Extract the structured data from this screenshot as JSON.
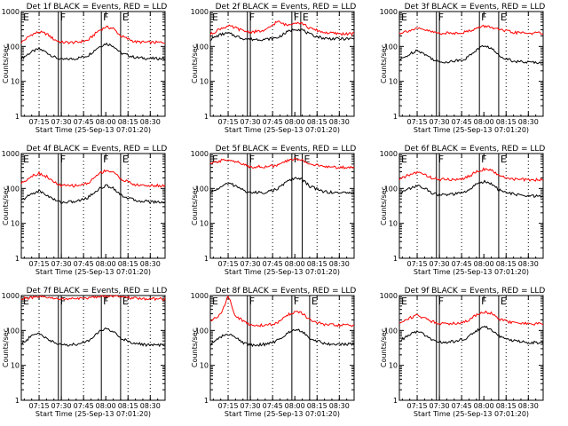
{
  "colors": {
    "events": "#000000",
    "lld": "#ff0000",
    "axis": "#000000",
    "background": "#ffffff"
  },
  "common": {
    "ylabel": "Counts/sec",
    "xlabel": "Start Time (25-Sep-13 07:01:20)",
    "xticks": [
      "07:15",
      "07:30",
      "07:45",
      "08:00",
      "08:15",
      "08:30"
    ],
    "yticks": [
      "1",
      "10",
      "100",
      "1000"
    ],
    "markers": [
      "E",
      "F",
      "F",
      "E"
    ]
  },
  "chart_data": [
    {
      "type": "line",
      "title": "Det 1f BLACK = Events, RED = LLD",
      "ylabel": "Counts/sec",
      "xlabel": "Start Time (25-Sep-13 07:01:20)",
      "yscale": "log",
      "ylim": [
        1,
        1000
      ],
      "xlim": [
        "07:03",
        "08:40"
      ],
      "vlines_dotted": [
        "07:15",
        "07:45",
        "08:15",
        "08:30"
      ],
      "vlines_solid": [
        "07:28",
        "07:30",
        "07:57",
        "08:10"
      ],
      "series": [
        {
          "name": "BLACK = Events",
          "x": [
            "07:03",
            "07:10",
            "07:15",
            "07:20",
            "07:25",
            "07:30",
            "07:40",
            "07:48",
            "07:55",
            "08:00",
            "08:05",
            "08:10",
            "08:20",
            "08:30",
            "08:40"
          ],
          "y": [
            45,
            70,
            85,
            68,
            50,
            42,
            45,
            55,
            95,
            120,
            105,
            65,
            48,
            45,
            45
          ]
        },
        {
          "name": "RED = LLD",
          "x": [
            "07:03",
            "07:10",
            "07:15",
            "07:20",
            "07:25",
            "07:30",
            "07:40",
            "07:48",
            "07:55",
            "08:00",
            "08:05",
            "08:10",
            "08:20",
            "08:30",
            "08:40"
          ],
          "y": [
            130,
            220,
            260,
            230,
            160,
            130,
            130,
            150,
            280,
            360,
            330,
            200,
            135,
            130,
            130
          ]
        }
      ]
    },
    {
      "type": "line",
      "title": "Det 2f BLACK = Events, RED = LLD",
      "ylabel": "Counts/sec",
      "xlabel": "Start Time (25-Sep-13 07:01:20)",
      "yscale": "log",
      "ylim": [
        1,
        1000
      ],
      "xlim": [
        "07:03",
        "08:40"
      ],
      "vlines_dotted": [
        "07:15",
        "07:45",
        "08:15",
        "08:30"
      ],
      "vlines_solid": [
        "07:28",
        "07:30",
        "07:58",
        "08:04"
      ],
      "series": [
        {
          "name": "BLACK = Events",
          "x": [
            "07:03",
            "07:10",
            "07:15",
            "07:20",
            "07:25",
            "07:30",
            "07:40",
            "07:48",
            "07:55",
            "08:00",
            "08:05",
            "08:10",
            "08:20",
            "08:30",
            "08:40"
          ],
          "y": [
            160,
            220,
            240,
            200,
            170,
            160,
            160,
            175,
            260,
            320,
            300,
            220,
            170,
            165,
            165
          ]
        },
        {
          "name": "RED = LLD",
          "x": [
            "07:03",
            "07:10",
            "07:15",
            "07:20",
            "07:25",
            "07:30",
            "07:40",
            "07:48",
            "07:55",
            "08:00",
            "08:05",
            "08:10",
            "08:20",
            "08:30",
            "08:40"
          ],
          "y": [
            220,
            330,
            380,
            340,
            280,
            260,
            280,
            520,
            400,
            500,
            460,
            330,
            250,
            230,
            230
          ]
        }
      ]
    },
    {
      "type": "line",
      "title": "Det 3f BLACK = Events, RED = LLD",
      "ylabel": "Counts/sec",
      "xlabel": "Start Time (25-Sep-13 07:01:20)",
      "yscale": "log",
      "ylim": [
        1,
        1000
      ],
      "xlim": [
        "07:03",
        "08:40"
      ],
      "vlines_dotted": [
        "07:15",
        "07:45",
        "08:15",
        "08:30"
      ],
      "vlines_solid": [
        "07:28",
        "07:30",
        "07:57",
        "08:10"
      ],
      "series": [
        {
          "name": "BLACK = Events",
          "x": [
            "07:03",
            "07:10",
            "07:15",
            "07:20",
            "07:25",
            "07:30",
            "07:40",
            "07:48",
            "07:55",
            "08:00",
            "08:05",
            "08:10",
            "08:20",
            "08:30",
            "08:40"
          ],
          "y": [
            40,
            60,
            80,
            60,
            45,
            35,
            38,
            45,
            80,
            105,
            90,
            55,
            38,
            35,
            35
          ]
        },
        {
          "name": "RED = LLD",
          "x": [
            "07:03",
            "07:10",
            "07:15",
            "07:20",
            "07:25",
            "07:30",
            "07:40",
            "07:48",
            "07:55",
            "08:00",
            "08:05",
            "08:10",
            "08:20",
            "08:30",
            "08:40"
          ],
          "y": [
            240,
            290,
            320,
            300,
            260,
            240,
            240,
            260,
            330,
            380,
            360,
            300,
            250,
            240,
            240
          ]
        }
      ]
    },
    {
      "type": "line",
      "title": "Det 4f BLACK = Events, RED = LLD",
      "ylabel": "Counts/sec",
      "xlabel": "Start Time (25-Sep-13 07:01:20)",
      "yscale": "log",
      "ylim": [
        1,
        1000
      ],
      "xlim": [
        "07:03",
        "08:40"
      ],
      "vlines_dotted": [
        "07:15",
        "07:45",
        "08:15",
        "08:30"
      ],
      "vlines_solid": [
        "07:28",
        "07:30",
        "07:57",
        "08:10"
      ],
      "series": [
        {
          "name": "BLACK = Events",
          "x": [
            "07:03",
            "07:10",
            "07:15",
            "07:20",
            "07:25",
            "07:30",
            "07:40",
            "07:48",
            "07:55",
            "08:00",
            "08:05",
            "08:10",
            "08:20",
            "08:30",
            "08:40"
          ],
          "y": [
            45,
            70,
            85,
            65,
            48,
            40,
            42,
            55,
            95,
            120,
            105,
            65,
            45,
            42,
            40
          ]
        },
        {
          "name": "RED = LLD",
          "x": [
            "07:03",
            "07:10",
            "07:15",
            "07:20",
            "07:25",
            "07:30",
            "07:40",
            "07:48",
            "07:55",
            "08:00",
            "08:05",
            "08:10",
            "08:20",
            "08:30",
            "08:40"
          ],
          "y": [
            140,
            230,
            270,
            220,
            150,
            120,
            120,
            140,
            260,
            330,
            300,
            190,
            125,
            120,
            120
          ]
        }
      ]
    },
    {
      "type": "line",
      "title": "Det 5f BLACK = Events, RED = LLD",
      "ylabel": "Counts/sec",
      "xlabel": "Start Time (25-Sep-13 07:01:20)",
      "yscale": "log",
      "ylim": [
        1,
        1000
      ],
      "xlim": [
        "07:03",
        "08:40"
      ],
      "vlines_dotted": [
        "07:15",
        "07:45",
        "08:15",
        "08:30"
      ],
      "vlines_solid": [
        "07:28",
        "07:30",
        "07:58",
        "08:05"
      ],
      "series": [
        {
          "name": "BLACK = Events",
          "x": [
            "07:03",
            "07:10",
            "07:15",
            "07:20",
            "07:25",
            "07:30",
            "07:40",
            "07:48",
            "07:55",
            "08:00",
            "08:05",
            "08:10",
            "08:20",
            "08:30",
            "08:40"
          ],
          "y": [
            75,
            110,
            140,
            120,
            90,
            75,
            78,
            95,
            160,
            200,
            180,
            115,
            80,
            75,
            75
          ]
        },
        {
          "name": "RED = LLD",
          "x": [
            "07:03",
            "07:10",
            "07:15",
            "07:20",
            "07:25",
            "07:30",
            "07:40",
            "07:48",
            "07:55",
            "08:00",
            "08:05",
            "08:10",
            "08:20",
            "08:30",
            "08:40"
          ],
          "y": [
            500,
            620,
            680,
            600,
            480,
            420,
            420,
            450,
            620,
            700,
            660,
            500,
            420,
            400,
            400
          ]
        }
      ]
    },
    {
      "type": "line",
      "title": "Det 6f BLACK = Events, RED = LLD",
      "ylabel": "Counts/sec",
      "xlabel": "Start Time (25-Sep-13 07:01:20)",
      "yscale": "log",
      "ylim": [
        1,
        1000
      ],
      "xlim": [
        "07:03",
        "08:40"
      ],
      "vlines_dotted": [
        "07:15",
        "07:45",
        "08:15",
        "08:30"
      ],
      "vlines_solid": [
        "07:28",
        "07:30",
        "07:57",
        "08:10"
      ],
      "series": [
        {
          "name": "BLACK = Events",
          "x": [
            "07:03",
            "07:10",
            "07:15",
            "07:20",
            "07:25",
            "07:30",
            "07:40",
            "07:48",
            "07:55",
            "08:00",
            "08:05",
            "08:10",
            "08:20",
            "08:30",
            "08:40"
          ],
          "y": [
            70,
            100,
            120,
            100,
            75,
            65,
            68,
            80,
            130,
            160,
            140,
            90,
            68,
            60,
            60
          ]
        },
        {
          "name": "RED = LLD",
          "x": [
            "07:03",
            "07:10",
            "07:15",
            "07:20",
            "07:25",
            "07:30",
            "07:40",
            "07:48",
            "07:55",
            "08:00",
            "08:05",
            "08:10",
            "08:20",
            "08:30",
            "08:40"
          ],
          "y": [
            180,
            250,
            290,
            250,
            200,
            180,
            180,
            200,
            300,
            360,
            330,
            230,
            185,
            175,
            175
          ]
        }
      ]
    },
    {
      "type": "line",
      "title": "Det 7f BLACK = Events, RED = LLD",
      "ylabel": "Counts/sec",
      "xlabel": "Start Time (25-Sep-13 07:01:20)",
      "yscale": "log",
      "ylim": [
        1,
        1000
      ],
      "xlim": [
        "07:03",
        "08:40"
      ],
      "vlines_dotted": [
        "07:15",
        "07:45",
        "08:15",
        "08:30"
      ],
      "vlines_solid": [
        "07:28",
        "07:30",
        "07:57",
        "08:10"
      ],
      "series": [
        {
          "name": "BLACK = Events",
          "x": [
            "07:03",
            "07:10",
            "07:15",
            "07:20",
            "07:25",
            "07:30",
            "07:40",
            "07:48",
            "07:55",
            "08:00",
            "08:05",
            "08:10",
            "08:20",
            "08:30",
            "08:40"
          ],
          "y": [
            40,
            70,
            85,
            60,
            45,
            38,
            40,
            50,
            90,
            110,
            95,
            60,
            42,
            38,
            38
          ]
        },
        {
          "name": "RED = LLD",
          "x": [
            "07:03",
            "07:10",
            "07:15",
            "07:20",
            "07:25",
            "07:30",
            "07:40",
            "07:48",
            "07:55",
            "08:00",
            "08:05",
            "08:10",
            "08:20",
            "08:30",
            "08:40"
          ],
          "y": [
            820,
            860,
            900,
            880,
            820,
            800,
            800,
            850,
            950,
            1000,
            980,
            900,
            830,
            800,
            800
          ]
        }
      ]
    },
    {
      "type": "line",
      "title": "Det 8f BLACK = Events, RED = LLD",
      "ylabel": "Counts/sec",
      "xlabel": "Start Time (25-Sep-13 07:01:20)",
      "yscale": "log",
      "ylim": [
        1,
        1000
      ],
      "xlim": [
        "07:03",
        "08:40"
      ],
      "vlines_dotted": [
        "07:15",
        "07:45",
        "08:15",
        "08:30"
      ],
      "vlines_solid": [
        "07:28",
        "07:30",
        "07:58",
        "08:10"
      ],
      "series": [
        {
          "name": "BLACK = Events",
          "x": [
            "07:03",
            "07:10",
            "07:15",
            "07:20",
            "07:25",
            "07:30",
            "07:40",
            "07:48",
            "07:55",
            "08:00",
            "08:05",
            "08:10",
            "08:20",
            "08:30",
            "08:40"
          ],
          "y": [
            40,
            65,
            80,
            62,
            45,
            38,
            40,
            50,
            85,
            110,
            95,
            60,
            42,
            40,
            40
          ]
        },
        {
          "name": "RED = LLD",
          "x": [
            "07:03",
            "07:10",
            "07:15",
            "07:20",
            "07:25",
            "07:30",
            "07:40",
            "07:48",
            "07:55",
            "08:00",
            "08:05",
            "08:10",
            "08:20",
            "08:30",
            "08:40"
          ],
          "y": [
            190,
            280,
            1000,
            260,
            190,
            140,
            140,
            160,
            280,
            340,
            310,
            200,
            145,
            140,
            140
          ]
        }
      ]
    },
    {
      "type": "line",
      "title": "Det 9f BLACK = Events, RED = LLD",
      "ylabel": "Counts/sec",
      "xlabel": "Start Time (25-Sep-13 07:01:20)",
      "yscale": "log",
      "ylim": [
        1,
        1000
      ],
      "xlim": [
        "07:03",
        "08:40"
      ],
      "vlines_dotted": [
        "07:15",
        "07:45",
        "08:15",
        "08:30"
      ],
      "vlines_solid": [
        "07:28",
        "07:30",
        "07:57",
        "08:10"
      ],
      "series": [
        {
          "name": "BLACK = Events",
          "x": [
            "07:03",
            "07:10",
            "07:15",
            "07:20",
            "07:25",
            "07:30",
            "07:40",
            "07:48",
            "07:55",
            "08:00",
            "08:05",
            "08:10",
            "08:20",
            "08:30",
            "08:40"
          ],
          "y": [
            50,
            75,
            95,
            75,
            55,
            45,
            48,
            58,
            100,
            125,
            110,
            70,
            50,
            45,
            45
          ]
        },
        {
          "name": "RED = LLD",
          "x": [
            "07:03",
            "07:10",
            "07:15",
            "07:20",
            "07:25",
            "07:30",
            "07:40",
            "07:48",
            "07:55",
            "08:00",
            "08:05",
            "08:10",
            "08:20",
            "08:30",
            "08:40"
          ],
          "y": [
            160,
            230,
            270,
            230,
            180,
            160,
            160,
            180,
            280,
            340,
            310,
            210,
            165,
            155,
            155
          ]
        }
      ]
    }
  ]
}
